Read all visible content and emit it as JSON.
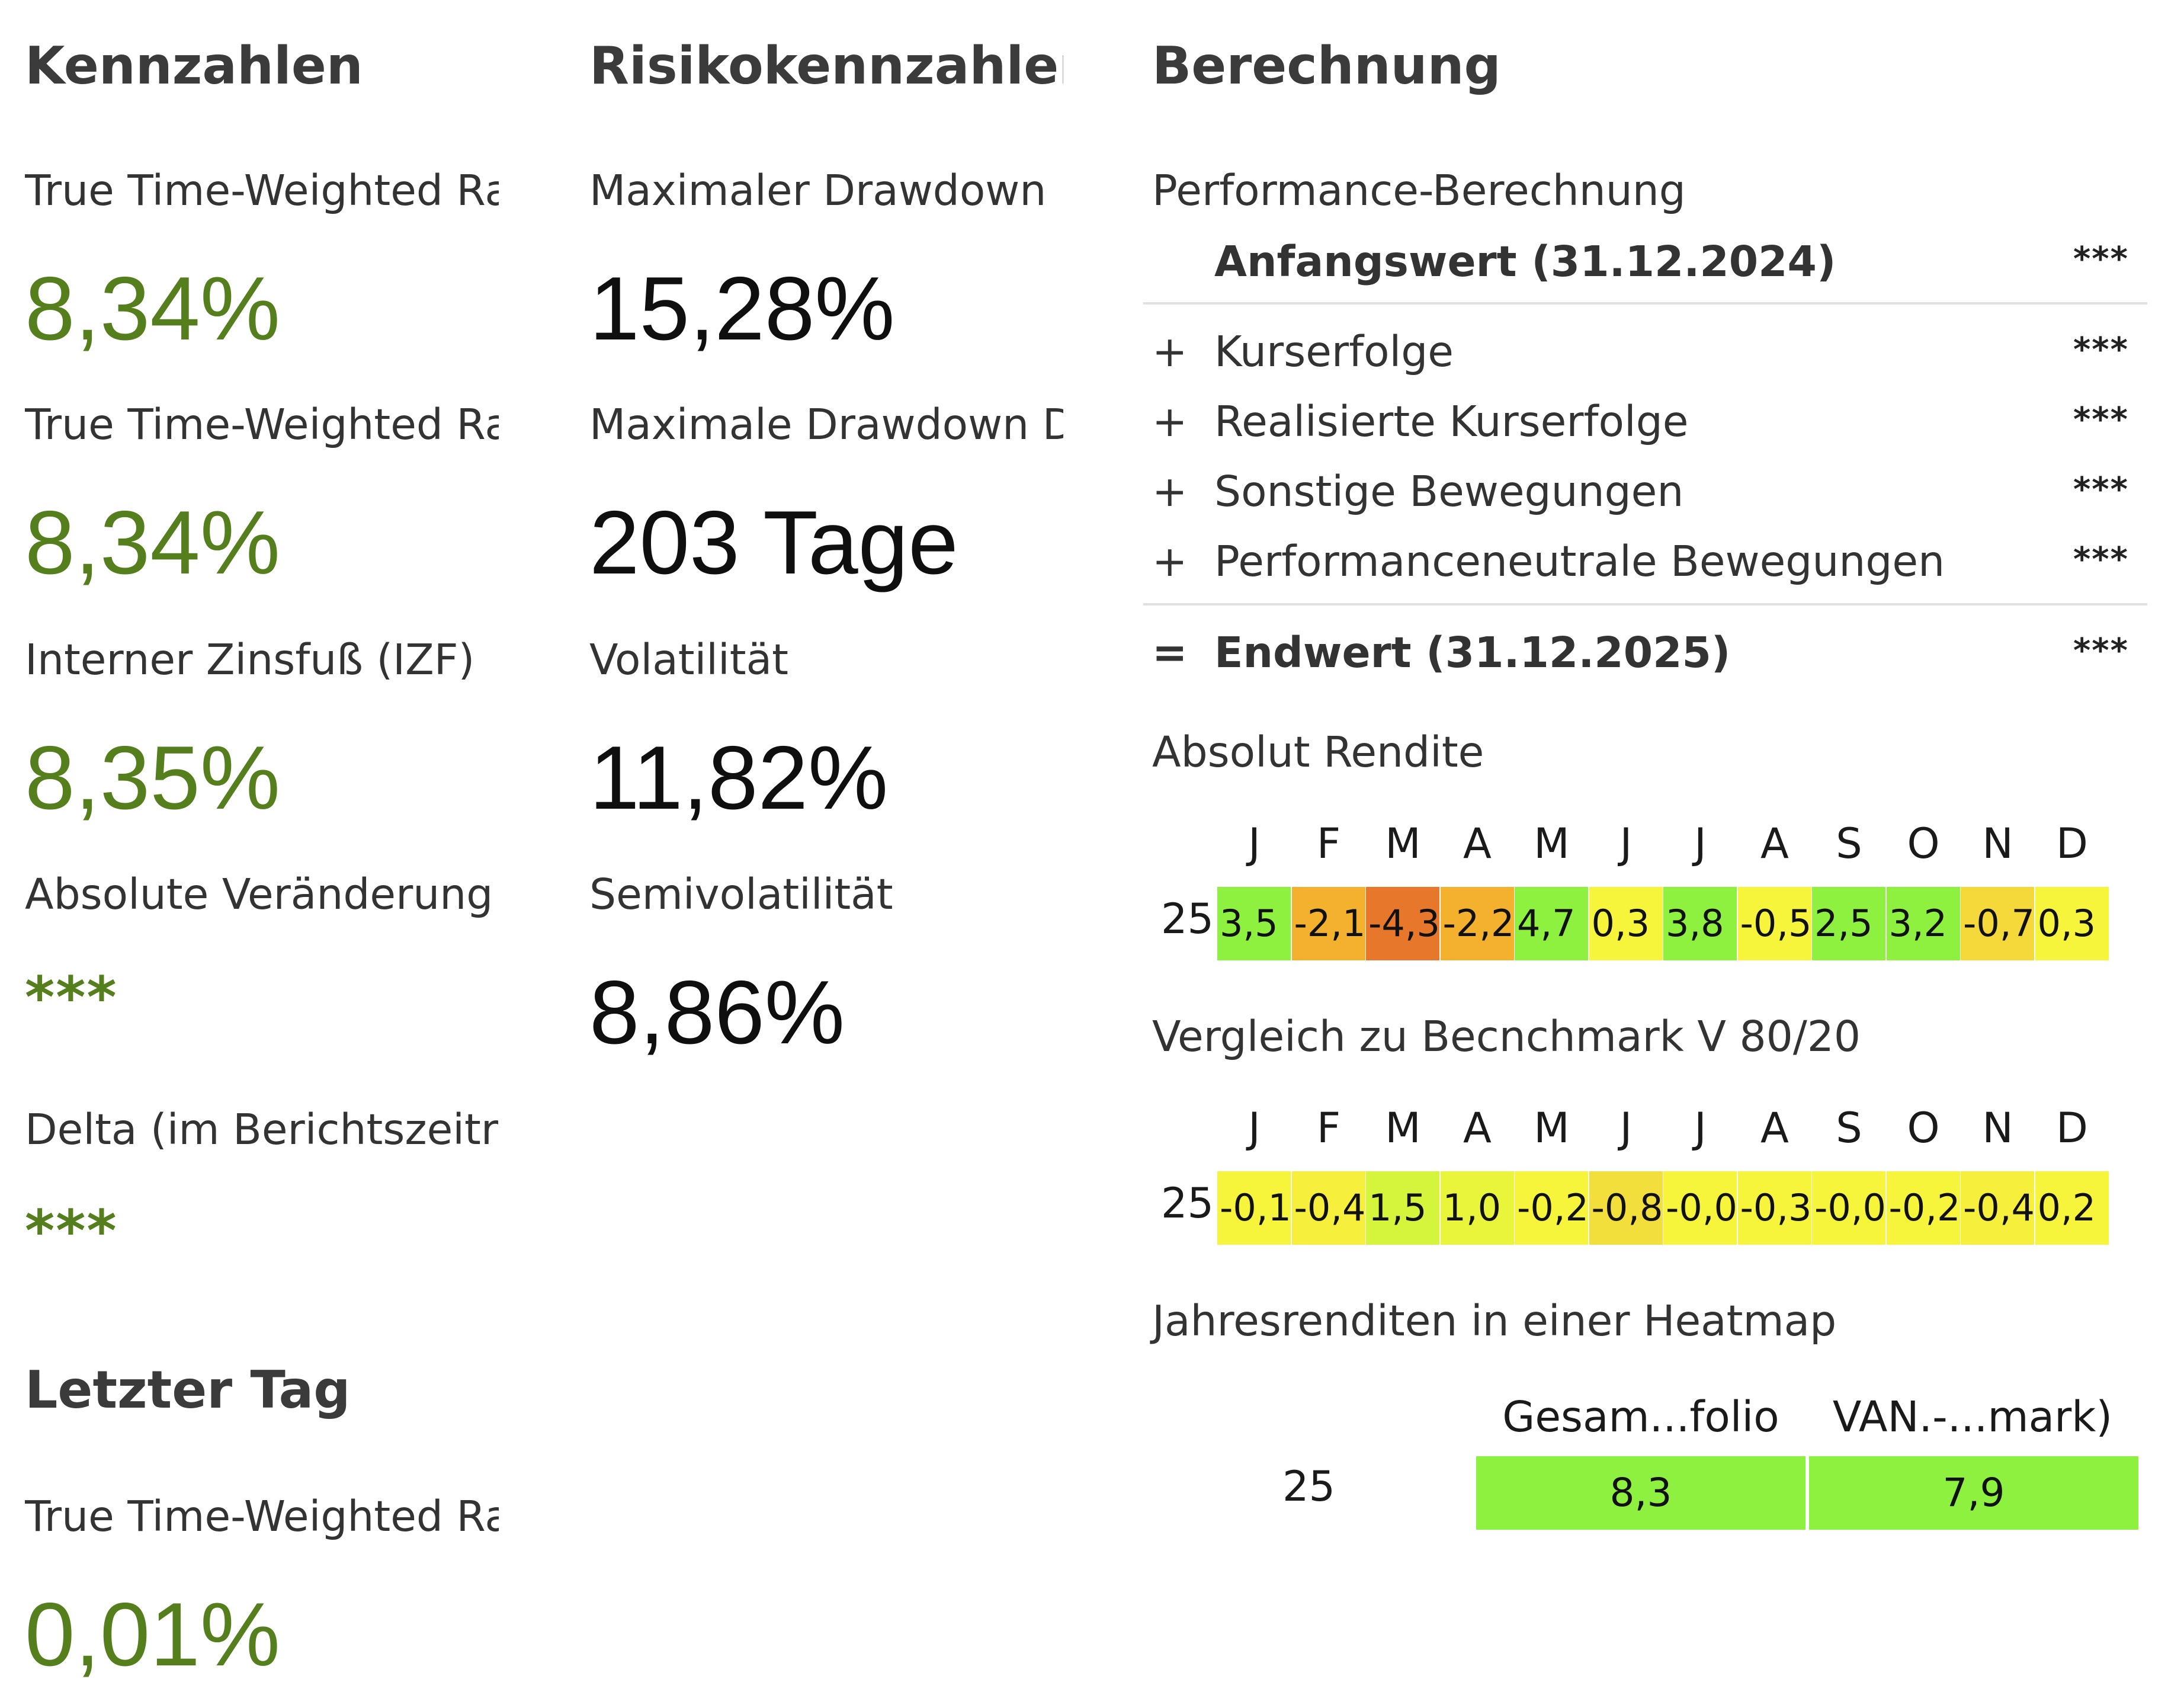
{
  "kennzahlen": {
    "heading": "Kennzahlen",
    "items": [
      {
        "label": "True Time-Weighted Rate of Return",
        "value": "8,34%"
      },
      {
        "label": "True Time-Weighted Rate of Return (annualisiert)",
        "value": "8,34%"
      },
      {
        "label": "Interner Zinsfuß (IZF)",
        "value": "8,35%"
      },
      {
        "label": "Absolute Veränderung",
        "value": "***"
      },
      {
        "label": "Delta (im Berichtszeitraum)",
        "value": "***"
      }
    ]
  },
  "letzter_tag": {
    "heading": "Letzter Tag",
    "items": [
      {
        "label": "True Time-Weighted Rate of Return",
        "value": "0,01%"
      }
    ]
  },
  "risiko": {
    "heading": "Risikokennzahlen",
    "items": [
      {
        "label": "Maximaler Drawdown",
        "value": "15,28%"
      },
      {
        "label": "Maximale Drawdown Dauer",
        "value": "203 Tage"
      },
      {
        "label": "Volatilität",
        "value": "11,82%"
      },
      {
        "label": "Semivolatilität",
        "value": "8,86%"
      }
    ]
  },
  "berechnung": {
    "heading": "Berechnung",
    "performance_title": "Performance-Berechnung",
    "start": {
      "sign": "",
      "label": "Anfangswert (31.12.2024)",
      "value": "***"
    },
    "rows": [
      {
        "sign": "+",
        "label": "Kurserfolge",
        "value": "***"
      },
      {
        "sign": "+",
        "label": "Realisierte Kurserfolge",
        "value": "***"
      },
      {
        "sign": "+",
        "label": "Sonstige Bewegungen",
        "value": "***"
      },
      {
        "sign": "+",
        "label": "Performanceneutrale Bewegungen",
        "value": "***"
      }
    ],
    "end": {
      "sign": "=",
      "label": "Endwert (31.12.2025)",
      "value": "***"
    }
  },
  "absolut_rendite": {
    "title": "Absolut Rendite",
    "months": [
      "J",
      "F",
      "M",
      "A",
      "M",
      "J",
      "J",
      "A",
      "S",
      "O",
      "N",
      "D"
    ],
    "year": "25",
    "values": [
      "3,5",
      "-2,1",
      "-4,3",
      "-2,2",
      "4,7",
      "0,3",
      "3,8",
      "-0,5",
      "2,5",
      "3,2",
      "-0,7",
      "0,3"
    ],
    "colors": [
      "#8ef03f",
      "#f3b12d",
      "#e7782b",
      "#f3b12d",
      "#8ef03f",
      "#f6f53b",
      "#8ef03f",
      "#f6f53b",
      "#8ef03f",
      "#8ef03f",
      "#f5d93b",
      "#f6f53b"
    ]
  },
  "vergleich": {
    "title": "Vergleich zu Becnchmark V 80/20",
    "months": [
      "J",
      "F",
      "M",
      "A",
      "M",
      "J",
      "J",
      "A",
      "S",
      "O",
      "N",
      "D"
    ],
    "year": "25",
    "values": [
      "-0,1",
      "-0,4",
      "1,5",
      "1,0",
      "-0,2",
      "-0,8",
      "-0,0",
      "-0,3",
      "-0,0",
      "-0,2",
      "-0,4",
      "0,2"
    ],
    "colors": [
      "#f6f53b",
      "#f6ef3b",
      "#d4f53b",
      "#e8f53b",
      "#f6f53b",
      "#f3df3b",
      "#f6f53b",
      "#f6f53b",
      "#f6f53b",
      "#f6f53b",
      "#f6ef3b",
      "#f6f53b"
    ]
  },
  "jahresrenditen": {
    "title": "Jahresrenditen in einer Heatmap",
    "columns": [
      "Gesam...folio",
      "VAN.-...mark)"
    ],
    "year": "25",
    "values": [
      "8,3",
      "7,9"
    ],
    "colors": [
      "#8ef03f",
      "#8ef03f"
    ]
  }
}
